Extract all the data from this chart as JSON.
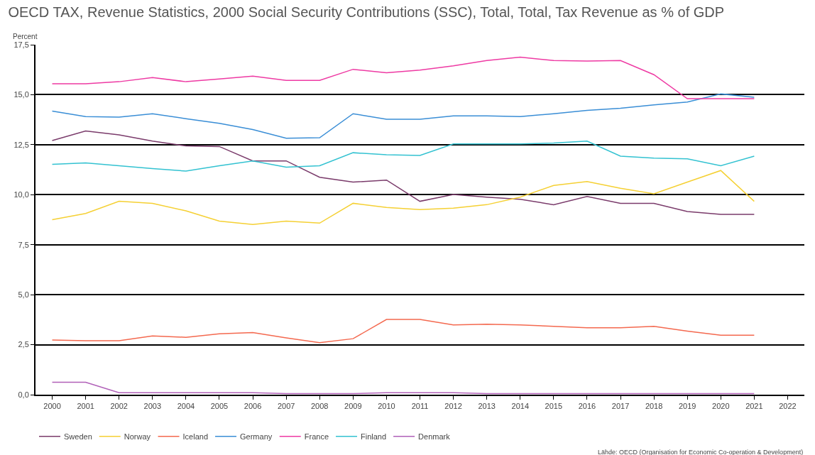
{
  "chart_data": {
    "type": "line",
    "title": "OECD TAX, Revenue Statistics, 2000 Social Security Contributions (SSC), Total, Total, Tax Revenue as % of GDP",
    "ylabel": "Percent",
    "categories": [
      "2000",
      "2001",
      "2002",
      "2003",
      "2004",
      "2005",
      "2006",
      "2007",
      "2008",
      "2009",
      "2010",
      "2011",
      "2012",
      "2013",
      "2014",
      "2015",
      "2016",
      "2017",
      "2018",
      "2019",
      "2020",
      "2021",
      "2022"
    ],
    "series": [
      {
        "name": "Sweden",
        "color": "#7a3b6b",
        "values": [
          12.71,
          13.19,
          12.99,
          12.68,
          12.44,
          12.41,
          11.69,
          11.69,
          10.87,
          10.63,
          10.73,
          9.67,
          10.01,
          9.88,
          9.77,
          9.5,
          9.91,
          9.57,
          9.57,
          9.16,
          9.02,
          9.02,
          null
        ]
      },
      {
        "name": "Norway",
        "color": "#f5d033",
        "values": [
          8.75,
          9.06,
          9.67,
          9.57,
          9.19,
          8.68,
          8.51,
          8.68,
          8.58,
          9.57,
          9.36,
          9.26,
          9.33,
          9.5,
          9.88,
          10.46,
          10.66,
          10.32,
          10.05,
          10.63,
          11.21,
          9.67,
          null
        ]
      },
      {
        "name": "Iceland",
        "color": "#f4694f",
        "values": [
          2.73,
          2.7,
          2.7,
          2.94,
          2.87,
          3.04,
          3.11,
          2.84,
          2.6,
          2.8,
          3.76,
          3.76,
          3.49,
          3.52,
          3.49,
          3.42,
          3.35,
          3.35,
          3.42,
          3.18,
          2.97,
          2.97,
          null
        ]
      },
      {
        "name": "Germany",
        "color": "#3a8ed6",
        "values": [
          14.18,
          13.91,
          13.88,
          14.05,
          13.8,
          13.57,
          13.26,
          12.82,
          12.85,
          14.05,
          13.77,
          13.77,
          13.94,
          13.94,
          13.91,
          14.05,
          14.22,
          14.32,
          14.49,
          14.63,
          15.04,
          14.87,
          null
        ]
      },
      {
        "name": "France",
        "color": "#ee3aa3",
        "values": [
          15.55,
          15.55,
          15.65,
          15.86,
          15.65,
          15.79,
          15.93,
          15.72,
          15.72,
          16.27,
          16.1,
          16.23,
          16.44,
          16.71,
          16.88,
          16.71,
          16.68,
          16.71,
          16.0,
          14.8,
          14.8,
          14.8,
          null
        ]
      },
      {
        "name": "Finland",
        "color": "#33c2d1",
        "values": [
          11.52,
          11.59,
          11.45,
          11.31,
          11.18,
          11.45,
          11.69,
          11.38,
          11.45,
          12.1,
          12.0,
          11.96,
          12.54,
          12.54,
          12.54,
          12.58,
          12.68,
          11.93,
          11.83,
          11.79,
          11.45,
          11.93,
          null
        ]
      },
      {
        "name": "Denmark",
        "color": "#b060b8",
        "values": [
          0.62,
          0.62,
          0.1,
          0.1,
          0.1,
          0.1,
          0.1,
          0.05,
          0.05,
          0.05,
          0.1,
          0.1,
          0.1,
          0.05,
          0.05,
          0.05,
          0.05,
          0.05,
          0.05,
          0.05,
          0.05,
          0.05,
          null
        ]
      }
    ],
    "ylim": [
      0,
      17.5
    ],
    "yticks": [
      {
        "value": 0,
        "label": "0,0"
      },
      {
        "value": 2.5,
        "label": "2,5"
      },
      {
        "value": 5,
        "label": "5,0"
      },
      {
        "value": 7.5,
        "label": "7,5"
      },
      {
        "value": 10,
        "label": "10,0"
      },
      {
        "value": 12.5,
        "label": "12,5"
      },
      {
        "value": 15,
        "label": "15,0"
      },
      {
        "value": 17.5,
        "label": "17,5"
      }
    ],
    "grid": "y",
    "legend": "bottom left",
    "marker": "none",
    "line_style": "solid",
    "annotations": [
      "Lähde: OECD (Organisation for Economic Co-operation & Development)"
    ]
  }
}
